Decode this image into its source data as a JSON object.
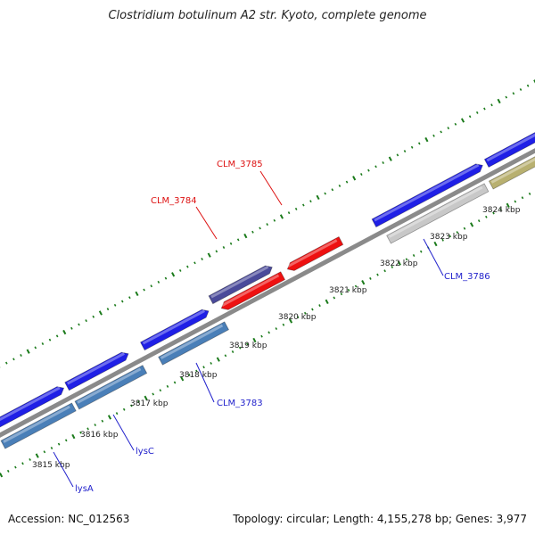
{
  "title": "Clostridium botulinum A2 str. Kyoto, complete genome",
  "footer": {
    "accession_label": "Accession:",
    "accession": "NC_012563",
    "topology_label": "Topology:",
    "topology": "circular",
    "length_label": "Length:",
    "length": "4,155,278 bp",
    "genes_label": "Genes:",
    "genes": "3,977"
  },
  "colors": {
    "background": "#ffffff",
    "backbone": "#8a8a8a",
    "forward_cds": "#1f1fe6",
    "reverse_cds": "#4a7fb8",
    "highlight_red": "#ee1111",
    "purple": "#4a4a9a",
    "grey_cds": "#c8c8c8",
    "olive_cds": "#b8b070",
    "ticks": "#1a7a1a",
    "label_red": "#dd1111",
    "label_blue": "#2222cc"
  },
  "kbp_labels": [
    "3815 kbp",
    "3816 kbp",
    "3817 kbp",
    "3818 kbp",
    "3819 kbp",
    "3820 kbp",
    "3821 kbp",
    "3822 kbp",
    "3823 kbp",
    "3824 kbp"
  ],
  "gene_labels": [
    {
      "text": "CLM_3785",
      "color": "red"
    },
    {
      "text": "CLM_3784",
      "color": "red"
    },
    {
      "text": "CLM_3786",
      "color": "blue"
    },
    {
      "text": "CLM_3783",
      "color": "blue"
    },
    {
      "text": "lysC",
      "color": "blue"
    },
    {
      "text": "lysA",
      "color": "blue"
    }
  ]
}
